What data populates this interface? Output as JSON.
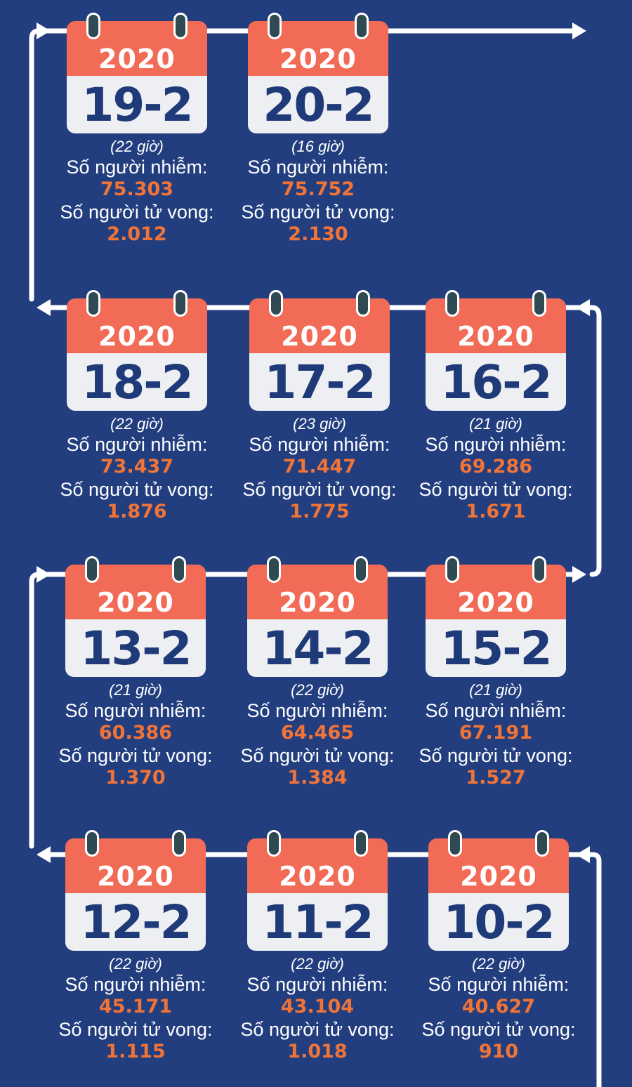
{
  "labels": {
    "infected": "Số người nhiễm:",
    "deaths": "Số người tử vong:"
  },
  "colors": {
    "background": "#233e7f",
    "calendar_header": "#f26b57",
    "calendar_body": "#eeeff3",
    "date_text": "#1f3a78",
    "numbers": "#f07438"
  },
  "cards": [
    {
      "year": "2020",
      "date": "19-2",
      "hour": "(22 giờ)",
      "infected": "75.303",
      "deaths": "2.012"
    },
    {
      "year": "2020",
      "date": "20-2",
      "hour": "(16 giờ)",
      "infected": "75.752",
      "deaths": "2.130"
    },
    {
      "year": "2020",
      "date": "18-2",
      "hour": "(22 giờ)",
      "infected": "73.437",
      "deaths": "1.876"
    },
    {
      "year": "2020",
      "date": "17-2",
      "hour": "(23 giờ)",
      "infected": "71.447",
      "deaths": "1.775"
    },
    {
      "year": "2020",
      "date": "16-2",
      "hour": "(21 giờ)",
      "infected": "69.286",
      "deaths": "1.671"
    },
    {
      "year": "2020",
      "date": "13-2",
      "hour": "(21 giờ)",
      "infected": "60.386",
      "deaths": "1.370"
    },
    {
      "year": "2020",
      "date": "14-2",
      "hour": "(22 giờ)",
      "infected": "64.465",
      "deaths": "1.384"
    },
    {
      "year": "2020",
      "date": "15-2",
      "hour": "(21 giờ)",
      "infected": "67.191",
      "deaths": "1.527"
    },
    {
      "year": "2020",
      "date": "12-2",
      "hour": "(22 giờ)",
      "infected": "45.171",
      "deaths": "1.115"
    },
    {
      "year": "2020",
      "date": "11-2",
      "hour": "(22 giờ)",
      "infected": "43.104",
      "deaths": "1.018"
    },
    {
      "year": "2020",
      "date": "10-2",
      "hour": "(22 giờ)",
      "infected": "40.627",
      "deaths": "910"
    }
  ]
}
